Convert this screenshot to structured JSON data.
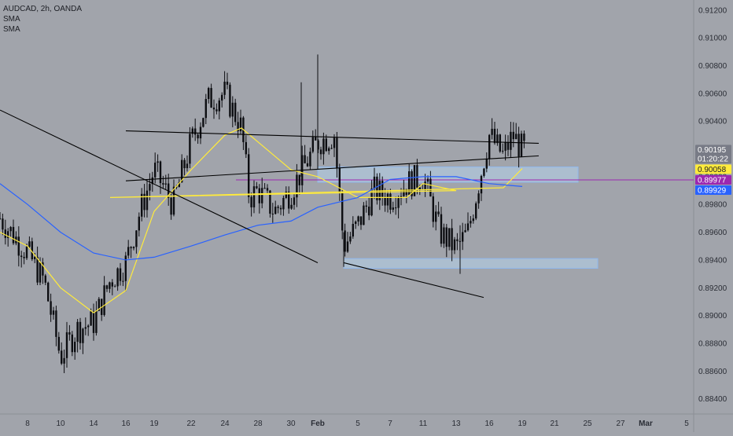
{
  "legend": {
    "symbol_line": "AUDCAD, 2h, OANDA",
    "indicators": [
      "SMA",
      "SMA"
    ]
  },
  "price_axis": {
    "ticks": [
      "0.91200",
      "0.91000",
      "0.90800",
      "0.90600",
      "0.90400",
      "0.90200",
      "0.90000",
      "0.89800",
      "0.89600",
      "0.89400",
      "0.89200",
      "0.89000",
      "0.88800",
      "0.88600",
      "0.88400"
    ],
    "tick_values": [
      0.912,
      0.91,
      0.908,
      0.906,
      0.904,
      0.902,
      0.9,
      0.898,
      0.896,
      0.894,
      0.892,
      0.89,
      0.888,
      0.886,
      0.884
    ]
  },
  "time_axis": {
    "labels": [
      "8",
      "10",
      "14",
      "16",
      "19",
      "22",
      "24",
      "28",
      "30",
      "Feb",
      "5",
      "7",
      "11",
      "13",
      "16",
      "19",
      "21",
      "25",
      "27",
      "Mar",
      "5"
    ],
    "bold_labels": [
      "Feb",
      "Mar"
    ]
  },
  "badges": [
    {
      "label": "0.90195",
      "sub": "01:20:22",
      "value": 0.90195,
      "bg": "#787b86",
      "fg": "#ffffff"
    },
    {
      "label": "0.90058",
      "value": 0.90058,
      "bg": "#ffeb3b",
      "fg": "#1c1e24"
    },
    {
      "label": "0.89977",
      "value": 0.89977,
      "bg": "#9c27b0",
      "fg": "#ffffff"
    },
    {
      "label": "0.89929",
      "value": 0.89929,
      "bg": "#2962ff",
      "fg": "#ffffff"
    }
  ],
  "colors": {
    "background": "#a1a4ab",
    "candle": "#0d0e12",
    "sma_fast": "#ffeb3b",
    "sma_slow": "#2962ff",
    "zone_fill": "#bbdefb",
    "zone_border": "#90b8ee",
    "trendline": "#000000",
    "hline": "#9c27b0"
  },
  "chart_data": {
    "type": "candlestick",
    "title": "AUDCAD, 2h, OANDA",
    "ylim": [
      0.8833,
      0.9125
    ],
    "x": [
      "8",
      "10",
      "14",
      "16",
      "19",
      "22",
      "24",
      "28",
      "30",
      "Feb",
      "5",
      "7",
      "11",
      "13",
      "16",
      "19",
      "21",
      "25",
      "27",
      "Mar",
      "5"
    ],
    "close_path": [
      {
        "x": "6",
        "y": 0.897
      },
      {
        "x": "8",
        "y": 0.8945
      },
      {
        "x": "9",
        "y": 0.8925
      },
      {
        "x": "10",
        "y": 0.887
      },
      {
        "x": "12",
        "y": 0.889
      },
      {
        "x": "14",
        "y": 0.8895
      },
      {
        "x": "15",
        "y": 0.8925
      },
      {
        "x": "16",
        "y": 0.8938
      },
      {
        "x": "18",
        "y": 0.8975
      },
      {
        "x": "19",
        "y": 0.9005
      },
      {
        "x": "21",
        "y": 0.898
      },
      {
        "x": "22",
        "y": 0.9025
      },
      {
        "x": "23",
        "y": 0.9055
      },
      {
        "x": "24",
        "y": 0.906
      },
      {
        "x": "26",
        "y": 0.9035
      },
      {
        "x": "27",
        "y": 0.8985
      },
      {
        "x": "28",
        "y": 0.899
      },
      {
        "x": "29",
        "y": 0.8975
      },
      {
        "x": "30",
        "y": 0.899
      },
      {
        "x": "Feb",
        "y": 0.9025
      },
      {
        "x": "3",
        "y": 0.903
      },
      {
        "x": "4",
        "y": 0.895
      },
      {
        "x": "5",
        "y": 0.8965
      },
      {
        "x": "6",
        "y": 0.899
      },
      {
        "x": "7",
        "y": 0.8985
      },
      {
        "x": "9",
        "y": 0.8995
      },
      {
        "x": "11",
        "y": 0.9
      },
      {
        "x": "12",
        "y": 0.896
      },
      {
        "x": "13",
        "y": 0.8948
      },
      {
        "x": "14",
        "y": 0.896
      },
      {
        "x": "16",
        "y": 0.903
      },
      {
        "x": "17",
        "y": 0.9015
      },
      {
        "x": "18",
        "y": 0.903
      },
      {
        "x": "19",
        "y": 0.90195
      }
    ],
    "series": [
      {
        "name": "SMA",
        "color": "#ffeb3b",
        "points": [
          {
            "x": "6",
            "y": 0.896
          },
          {
            "x": "8",
            "y": 0.895
          },
          {
            "x": "10",
            "y": 0.892
          },
          {
            "x": "14",
            "y": 0.8902
          },
          {
            "x": "16",
            "y": 0.8918
          },
          {
            "x": "19",
            "y": 0.8975
          },
          {
            "x": "22",
            "y": 0.9005
          },
          {
            "x": "24",
            "y": 0.903
          },
          {
            "x": "26",
            "y": 0.9035
          },
          {
            "x": "28",
            "y": 0.9025
          },
          {
            "x": "30",
            "y": 0.9005
          },
          {
            "x": "Feb",
            "y": 0.9
          },
          {
            "x": "5",
            "y": 0.8985
          },
          {
            "x": "7",
            "y": 0.8985
          },
          {
            "x": "9",
            "y": 0.8985
          },
          {
            "x": "11",
            "y": 0.8995
          },
          {
            "x": "13",
            "y": 0.899
          },
          {
            "x": "15",
            "y": 0.8985
          },
          {
            "x": "17",
            "y": 0.8992
          },
          {
            "x": "19",
            "y": 0.90058
          }
        ]
      },
      {
        "name": "SMA",
        "color": "#2962ff",
        "points": [
          {
            "x": "6",
            "y": 0.8995
          },
          {
            "x": "8",
            "y": 0.898
          },
          {
            "x": "10",
            "y": 0.896
          },
          {
            "x": "14",
            "y": 0.8945
          },
          {
            "x": "16",
            "y": 0.894
          },
          {
            "x": "19",
            "y": 0.8942
          },
          {
            "x": "22",
            "y": 0.895
          },
          {
            "x": "24",
            "y": 0.8958
          },
          {
            "x": "28",
            "y": 0.8965
          },
          {
            "x": "30",
            "y": 0.8968
          },
          {
            "x": "Feb",
            "y": 0.8978
          },
          {
            "x": "5",
            "y": 0.8985
          },
          {
            "x": "7",
            "y": 0.8998
          },
          {
            "x": "11",
            "y": 0.9
          },
          {
            "x": "13",
            "y": 0.9
          },
          {
            "x": "16",
            "y": 0.8995
          },
          {
            "x": "19",
            "y": 0.89929
          }
        ]
      }
    ],
    "zones": [
      {
        "from_x": "Feb",
        "to_x": "23",
        "y_low": 0.8996,
        "y_high": 0.9007
      },
      {
        "from_x": "4",
        "to_x": "25",
        "y_low": 0.8934,
        "y_high": 0.8941
      }
    ],
    "horizontal_line": 0.89977,
    "trendlines": [
      {
        "from": {
          "x": "6",
          "y": 0.9048
        },
        "to": {
          "x": "Feb",
          "y": 0.8938
        }
      },
      {
        "from": {
          "x": "4",
          "y": 0.8938
        },
        "to": {
          "x": "20",
          "y": 0.8913
        }
      },
      {
        "from": {
          "x": "16",
          "y": 0.9033
        },
        "to": {
          "x": "20",
          "y": 0.9024
        }
      },
      {
        "from": {
          "x": "16",
          "y": 0.8997
        },
        "to": {
          "x": "20",
          "y": 0.9015
        }
      }
    ],
    "grid": false
  }
}
